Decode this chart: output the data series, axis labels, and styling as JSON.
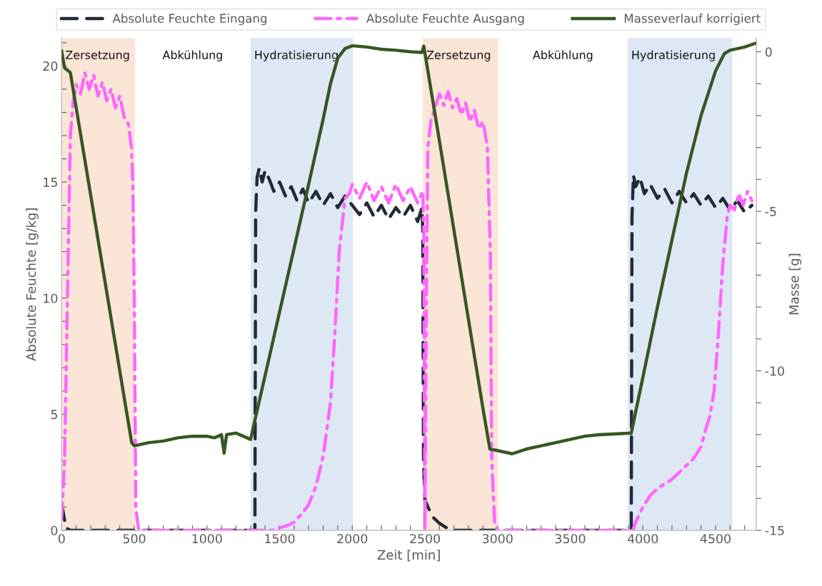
{
  "chart_data": {
    "type": "line",
    "xlabel": "Zeit [min]",
    "ylabel": "Absolute Feuchte [g/kg]",
    "y2label": "Masse [g]",
    "xlim": [
      0,
      4780
    ],
    "ylim": [
      0,
      21.2
    ],
    "y2lim": [
      -15,
      0.43
    ],
    "xticks": [
      0,
      {
        "value": 100,
        "label": null
      },
      {
        "value": 200,
        "label": null
      },
      {
        "value": 300,
        "label": null
      },
      {
        "value": 400,
        "label": null
      },
      500,
      {
        "value": 600,
        "label": null
      },
      {
        "value": 700,
        "label": null
      },
      {
        "value": 800,
        "label": null
      },
      {
        "value": 900,
        "label": null
      },
      1000,
      {
        "value": 1100,
        "label": null
      },
      {
        "value": 1200,
        "label": null
      },
      {
        "value": 1300,
        "label": null
      },
      {
        "value": 1400,
        "label": null
      },
      1500,
      {
        "value": 1600,
        "label": null
      },
      {
        "value": 1700,
        "label": null
      },
      {
        "value": 1800,
        "label": null
      },
      {
        "value": 1900,
        "label": null
      },
      2000,
      {
        "value": 2100,
        "label": null
      },
      {
        "value": 2200,
        "label": null
      },
      {
        "value": 2300,
        "label": null
      },
      {
        "value": 2400,
        "label": null
      },
      2500,
      {
        "value": 2600,
        "label": null
      },
      {
        "value": 2700,
        "label": null
      },
      {
        "value": 2800,
        "label": null
      },
      {
        "value": 2900,
        "label": null
      },
      3000,
      {
        "value": 3100,
        "label": null
      },
      {
        "value": 3200,
        "label": null
      },
      {
        "value": 3300,
        "label": null
      },
      {
        "value": 3400,
        "label": null
      },
      3500,
      {
        "value": 3600,
        "label": null
      },
      {
        "value": 3700,
        "label": null
      },
      {
        "value": 3800,
        "label": null
      },
      {
        "value": 3900,
        "label": null
      },
      4000,
      {
        "value": 4100,
        "label": null
      },
      {
        "value": 4200,
        "label": null
      },
      {
        "value": 4300,
        "label": null
      },
      {
        "value": 4400,
        "label": null
      },
      4500,
      {
        "value": 4600,
        "label": null
      },
      {
        "value": 4700,
        "label": null
      }
    ],
    "yticks": [
      0,
      {
        "value": 1,
        "label": null
      },
      {
        "value": 2,
        "label": null
      },
      {
        "value": 3,
        "label": null
      },
      {
        "value": 4,
        "label": null
      },
      5,
      {
        "value": 6,
        "label": null
      },
      {
        "value": 7,
        "label": null
      },
      {
        "value": 8,
        "label": null
      },
      {
        "value": 9,
        "label": null
      },
      10,
      {
        "value": 11,
        "label": null
      },
      {
        "value": 12,
        "label": null
      },
      {
        "value": 13,
        "label": null
      },
      {
        "value": 14,
        "label": null
      },
      15,
      {
        "value": 16,
        "label": null
      },
      {
        "value": 17,
        "label": null
      },
      {
        "value": 18,
        "label": null
      },
      {
        "value": 19,
        "label": null
      },
      20,
      {
        "value": 21,
        "label": null
      }
    ],
    "y2ticks": [
      -15,
      {
        "value": -14,
        "label": null
      },
      {
        "value": -13,
        "label": null
      },
      {
        "value": -12,
        "label": null
      },
      {
        "value": -11,
        "label": null
      },
      -10,
      {
        "value": -9,
        "label": null
      },
      {
        "value": -8,
        "label": null
      },
      {
        "value": -7,
        "label": null
      },
      {
        "value": -6,
        "label": null
      },
      -5,
      {
        "value": -4,
        "label": null
      },
      {
        "value": -3,
        "label": null
      },
      {
        "value": -2,
        "label": null
      },
      {
        "value": -1,
        "label": null
      },
      0
    ],
    "grid": false,
    "legend": "top",
    "marker": "none",
    "bands": [
      {
        "axis": "x",
        "from": 0,
        "to": 505,
        "label": "Zersetzung",
        "color": "#fbe5d6"
      },
      {
        "axis": "x",
        "from": 1300,
        "to": 2005,
        "label": "Hydratisierung",
        "color": "#dee8f4"
      },
      {
        "axis": "x",
        "from": 2485,
        "to": 3005,
        "label": "Zersetzung",
        "color": "#fbe5d6"
      },
      {
        "axis": "x",
        "from": 3895,
        "to": 4615,
        "label": "Hydratisierung",
        "color": "#dee8f4"
      }
    ],
    "annotations": [
      "Abkühlung",
      "Abkühlung"
    ],
    "series": [
      {
        "name": "Absolute Feuchte Eingang",
        "color": "#222a35",
        "line_style": "dashed",
        "x": [
          0,
          10,
          30,
          60,
          500,
          1000,
          1330,
          1335,
          1345,
          1360,
          1380,
          1400,
          1430,
          1460,
          1500,
          1540,
          1580,
          1620,
          1660,
          1700,
          1750,
          1800,
          1850,
          1900,
          1950,
          2000,
          2050,
          2100,
          2150,
          2200,
          2250,
          2300,
          2350,
          2400,
          2450,
          2480,
          2485,
          2490,
          2500,
          2550,
          2600,
          2650,
          2700,
          3000,
          3500,
          3920,
          3925,
          3935,
          3950,
          3980,
          4010,
          4050,
          4100,
          4150,
          4200,
          4250,
          4300,
          4350,
          4400,
          4450,
          4500,
          4550,
          4600,
          4650,
          4700,
          4750
        ],
        "values": [
          1.1,
          0.8,
          0.1,
          0,
          0,
          0,
          0,
          13.7,
          15.2,
          15.6,
          15.0,
          15.5,
          15.1,
          14.6,
          15.0,
          14.4,
          14.8,
          14.2,
          14.7,
          14.1,
          14.6,
          14.0,
          14.5,
          13.9,
          14.4,
          14.0,
          13.6,
          14.1,
          13.5,
          14.0,
          13.4,
          13.9,
          13.5,
          14.0,
          13.3,
          13.9,
          13.0,
          3.0,
          1.3,
          0.6,
          0.3,
          0.1,
          0,
          0,
          0,
          0,
          13.5,
          15.3,
          14.8,
          15.2,
          14.5,
          14.9,
          14.3,
          14.7,
          14.1,
          14.6,
          14.1,
          14.5,
          14.0,
          14.4,
          13.9,
          14.3,
          13.8,
          14.2,
          13.7,
          14.0
        ]
      },
      {
        "name": "Absolute Feuchte Ausgang",
        "color": "#ff66ff",
        "line_style": "dashdot",
        "x": [
          0,
          20,
          40,
          60,
          80,
          100,
          130,
          160,
          190,
          220,
          250,
          280,
          310,
          340,
          370,
          400,
          430,
          460,
          480,
          490,
          500,
          510,
          530,
          1000,
          1450,
          1500,
          1550,
          1600,
          1650,
          1700,
          1750,
          1800,
          1850,
          1880,
          1910,
          1950,
          1980,
          2000,
          2050,
          2100,
          2150,
          2200,
          2250,
          2300,
          2350,
          2400,
          2450,
          2485,
          2492,
          2500,
          2510,
          2520,
          2540,
          2570,
          2600,
          2630,
          2660,
          2690,
          2720,
          2750,
          2780,
          2810,
          2840,
          2870,
          2900,
          2930,
          2950,
          2960,
          2980,
          3000,
          3500,
          3930,
          3950,
          4000,
          4050,
          4100,
          4150,
          4200,
          4250,
          4300,
          4350,
          4400,
          4430,
          4460,
          4490,
          4520,
          4550,
          4580,
          4600,
          4630,
          4660,
          4690,
          4720,
          4750
        ],
        "values": [
          0.5,
          3,
          10,
          17,
          18.5,
          19.2,
          18.8,
          19.7,
          19.0,
          19.6,
          18.7,
          19.3,
          18.5,
          19.0,
          18.2,
          18.7,
          17.8,
          17.5,
          16.5,
          15,
          10,
          1,
          0,
          0,
          0,
          0.1,
          0.2,
          0.35,
          0.7,
          1.1,
          1.9,
          3.2,
          5.5,
          8.5,
          12.0,
          14.3,
          14.5,
          14.9,
          14.3,
          15.0,
          14.2,
          14.8,
          14.1,
          14.9,
          14.2,
          14.8,
          14.1,
          14.6,
          13.0,
          0,
          10,
          16.5,
          17.6,
          18.2,
          18.8,
          18.3,
          18.9,
          18.2,
          18.6,
          17.9,
          18.4,
          17.6,
          18.1,
          17.3,
          17.6,
          16.5,
          12,
          3,
          0.3,
          0,
          0,
          0,
          0.35,
          1.0,
          1.5,
          1.8,
          2.0,
          2.2,
          2.5,
          2.8,
          3.1,
          3.6,
          4.3,
          4.9,
          6.0,
          8.5,
          11.5,
          13.5,
          14.0,
          13.8,
          14.5,
          14.0,
          14.6,
          14.2
        ]
      },
      {
        "name": "Masseverlauf korrigiert",
        "color": "#375623",
        "line_style": "solid",
        "axis": "y2",
        "x": [
          0,
          20,
          60,
          100,
          200,
          300,
          400,
          482,
          500,
          550,
          600,
          700,
          800,
          900,
          1000,
          1050,
          1100,
          1118,
          1135,
          1200,
          1250,
          1300,
          1400,
          1500,
          1600,
          1700,
          1800,
          1850,
          1900,
          1950,
          2000,
          2100,
          2200,
          2300,
          2400,
          2480,
          2492,
          2600,
          2700,
          2800,
          2900,
          2947,
          3000,
          3100,
          3200,
          3300,
          3400,
          3500,
          3600,
          3700,
          3800,
          3920,
          4000,
          4100,
          4200,
          4300,
          4400,
          4500,
          4560,
          4600,
          4700,
          4770
        ],
        "values": [
          0.02,
          -0.5,
          -0.65,
          -1.75,
          -4.5,
          -7.25,
          -10.0,
          -12.25,
          -12.35,
          -12.3,
          -12.25,
          -12.2,
          -12.1,
          -12.05,
          -12.05,
          -12.1,
          -12.0,
          -12.58,
          -12.0,
          -11.95,
          -12.05,
          -12.15,
          -10.15,
          -8.15,
          -6.15,
          -4.15,
          -2.1,
          -1.0,
          -0.2,
          0.1,
          0.19,
          0.15,
          0.08,
          0.05,
          0.0,
          -0.02,
          0.18,
          -2.8,
          -5.6,
          -8.4,
          -11.2,
          -12.45,
          -12.5,
          -12.6,
          -12.45,
          -12.35,
          -12.25,
          -12.15,
          -12.05,
          -12.0,
          -11.98,
          -11.95,
          -10.2,
          -8.0,
          -5.9,
          -3.8,
          -2.0,
          -0.6,
          -0.06,
          0.05,
          0.15,
          0.26
        ]
      }
    ]
  }
}
